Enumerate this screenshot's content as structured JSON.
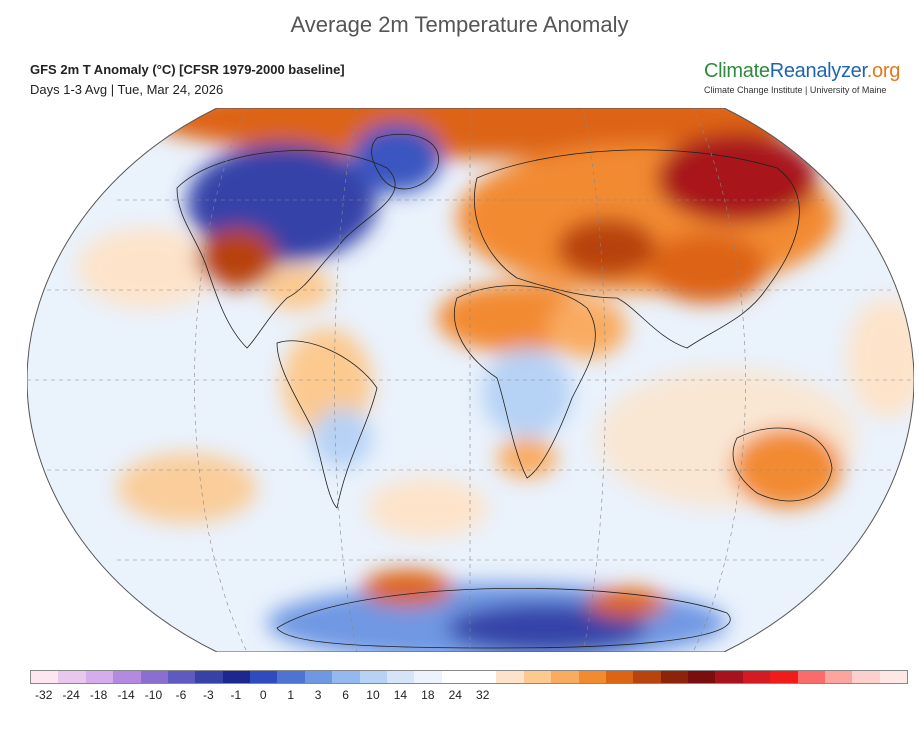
{
  "title": "Average 2m Temperature Anomaly",
  "subtitle": {
    "line1": "GFS 2m T Anomaly (°C) [CFSR 1979-2000 baseline]",
    "line2": "Days 1-3 Avg | Tue, Mar 24, 2026"
  },
  "brand": {
    "logo_part1": "Climate",
    "logo_part2": "Reanalyzer",
    "logo_part3": ".org",
    "tagline": "Climate Change Institute | University of Maine"
  },
  "colorbar": {
    "colors": [
      "#fde6f0",
      "#e8c8ec",
      "#d5acec",
      "#b48ae0",
      "#8a6fd0",
      "#5e5abf",
      "#3642a8",
      "#1c2890",
      "#2e4bbf",
      "#4e74d3",
      "#6f98e3",
      "#93b9ee",
      "#b6d2f5",
      "#d4e5fa",
      "#ecf3fd",
      "#ffffff",
      "#ffffff",
      "#fde3c9",
      "#fcc98f",
      "#f9ab60",
      "#f28a30",
      "#dd6413",
      "#b8430c",
      "#8d240a",
      "#7a0e0e",
      "#a8121c",
      "#d41a23",
      "#f01c1c",
      "#fa6b6b",
      "#fca49e",
      "#fdd0cc",
      "#fde8e6"
    ],
    "tick_labels": [
      "-32",
      "-24",
      "-18",
      "-14",
      "-10",
      "-6",
      "-3",
      "-1",
      "0",
      "1",
      "3",
      "6",
      "10",
      "14",
      "18",
      "24",
      "32"
    ]
  },
  "map": {
    "anomaly_regions": [
      {
        "name": "eastern-canada-cold",
        "color": "#2e3fae"
      },
      {
        "name": "greenland-cold",
        "color": "#3a56c0"
      },
      {
        "name": "western-us-warm",
        "color": "#b8430c"
      },
      {
        "name": "siberia-warm",
        "color": "#a8121c"
      },
      {
        "name": "central-asia-warm",
        "color": "#b8430c"
      },
      {
        "name": "arctic-warm",
        "color": "#b8430c"
      },
      {
        "name": "north-africa-warm",
        "color": "#dd6413"
      },
      {
        "name": "australia-warm",
        "color": "#dd6413"
      },
      {
        "name": "antarctica-cold",
        "color": "#3642a8"
      },
      {
        "name": "antarctic-peninsula-warm",
        "color": "#dd6413"
      }
    ]
  }
}
